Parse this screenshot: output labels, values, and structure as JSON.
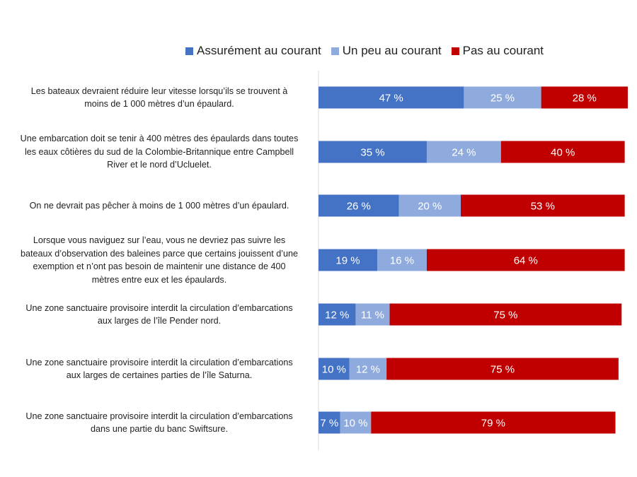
{
  "chart_data": {
    "type": "bar",
    "orientation": "horizontal",
    "stacked": true,
    "legend_position": "top",
    "grid": false,
    "xlim": [
      0,
      100
    ],
    "categories": [
      [
        "Les bateaux devraient réduire leur vitesse lorsqu’ils se trouvent à",
        "moins de 1 000  mètres d’un épaulard."
      ],
      [
        "Une embarcation doit se tenir à 400  mètres des épaulards dans toutes",
        "les eaux côtières du sud de la Colombie-Britannique entre Campbell",
        "River et le nord d’Ucluelet."
      ],
      [
        "On ne devrait pas pêcher à moins de 1 000  mètres d’un épaulard."
      ],
      [
        "Lorsque vous naviguez sur l’eau, vous ne devriez pas suivre les",
        "bateaux d’observation des baleines parce que certains jouissent d’une",
        "exemption et n’ont pas besoin de maintenir une distance de 400",
        "mètres entre eux et les épaulards."
      ],
      [
        "Une zone sanctuaire provisoire interdit la circulation d’embarcations",
        "aux larges de l’île Pender nord."
      ],
      [
        "Une zone sanctuaire provisoire interdit la circulation d’embarcations",
        "aux larges de certaines parties de l’île Saturna."
      ],
      [
        "Une zone sanctuaire provisoire interdit la circulation d’embarcations",
        "dans une partie du banc Swiftsure."
      ]
    ],
    "series": [
      {
        "name": "Assurément au courant",
        "color": "#4472C4",
        "values": [
          47,
          35,
          26,
          19,
          12,
          10,
          7
        ]
      },
      {
        "name": "Un peu au courant",
        "color": "#8FAADC",
        "values": [
          25,
          24,
          20,
          16,
          11,
          12,
          10
        ]
      },
      {
        "name": "Pas au courant",
        "color": "#C00000",
        "values": [
          28,
          40,
          53,
          64,
          75,
          75,
          79
        ]
      }
    ],
    "value_suffix": " %"
  }
}
